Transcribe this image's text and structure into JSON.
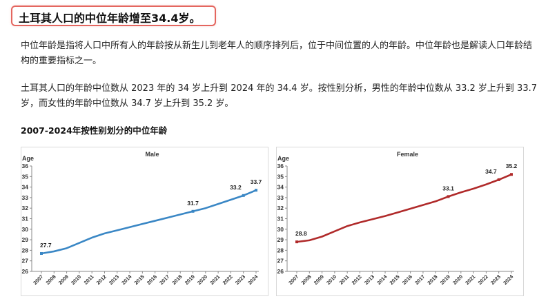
{
  "headline": "土耳其人口的中位年龄增至34.4岁。",
  "paragraphs": [
    "中位年龄是指将人口中所有人的年龄按从新生儿到老年人的顺序排列后，位于中间位置的人的年龄。中位年龄也是解读人口年龄结构的重要指标之一。",
    "土耳其人口的年龄中位数从 2023 年的 34 岁上升到 2024 年的 34.4 岁。按性别分析，男性的年龄中位数从 33.2 岁上升到 33.7 岁，而女性的年龄中位数从 34.7 岁上升到 35.2 岁。"
  ],
  "section_title": "2007-2024年按性别划分的中位年龄",
  "chart_data": [
    {
      "type": "line",
      "title": "Male",
      "ylabel": "Age",
      "xlabel": "",
      "x": [
        "2007",
        "2008",
        "2009",
        "2010",
        "2011",
        "2012",
        "2013",
        "2014",
        "2015",
        "2016",
        "2017",
        "2018",
        "2019",
        "2020",
        "2021",
        "2022",
        "2023",
        "2024"
      ],
      "values": [
        27.7,
        27.9,
        28.2,
        28.7,
        29.2,
        29.6,
        29.9,
        30.2,
        30.5,
        30.8,
        31.1,
        31.4,
        31.7,
        32.0,
        32.4,
        32.8,
        33.2,
        33.7
      ],
      "labeled_points": [
        {
          "x": "2007",
          "label": "27.7"
        },
        {
          "x": "2019",
          "label": "31.7"
        },
        {
          "x": "2023",
          "label": "33.2"
        },
        {
          "x": "2024",
          "label": "33.7"
        }
      ],
      "ylim": [
        26,
        36
      ],
      "yticks": [
        26,
        27,
        28,
        29,
        30,
        31,
        32,
        33,
        34,
        35,
        36
      ],
      "grid": false,
      "color": "#3a87c5"
    },
    {
      "type": "line",
      "title": "Female",
      "ylabel": "Age",
      "xlabel": "",
      "x": [
        "2007",
        "2008",
        "2009",
        "2010",
        "2011",
        "2012",
        "2013",
        "2014",
        "2015",
        "2016",
        "2017",
        "2018",
        "2019",
        "2020",
        "2021",
        "2022",
        "2023",
        "2024"
      ],
      "values": [
        28.8,
        28.95,
        29.3,
        29.8,
        30.3,
        30.65,
        30.95,
        31.25,
        31.6,
        31.95,
        32.3,
        32.65,
        33.1,
        33.5,
        33.85,
        34.25,
        34.7,
        35.2
      ],
      "labeled_points": [
        {
          "x": "2007",
          "label": "28.8"
        },
        {
          "x": "2019",
          "label": "33.1"
        },
        {
          "x": "2023",
          "label": "34.7"
        },
        {
          "x": "2024",
          "label": "35.2"
        }
      ],
      "ylim": [
        26,
        36
      ],
      "yticks": [
        26,
        27,
        28,
        29,
        30,
        31,
        32,
        33,
        34,
        35,
        36
      ],
      "grid": false,
      "color": "#b02a2a"
    }
  ]
}
